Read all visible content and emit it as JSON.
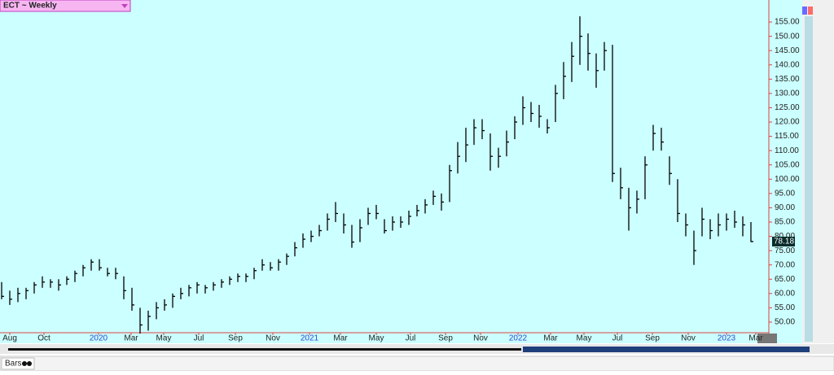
{
  "chart_data": {
    "type": "ohlc",
    "title": "ECT ~ Weekly",
    "high": [
      64,
      61,
      62,
      62,
      64,
      66,
      65,
      65,
      66,
      68,
      70,
      72,
      72,
      69,
      69,
      66,
      62,
      55,
      54,
      57,
      58,
      60,
      62,
      63,
      64,
      63,
      64,
      65,
      66,
      67,
      67,
      69,
      72,
      71,
      72,
      74,
      78,
      81,
      82,
      84,
      88,
      92,
      88,
      84,
      86,
      90,
      91,
      86,
      87,
      87,
      89,
      91,
      93,
      96,
      95,
      105,
      113,
      118,
      121,
      121,
      116,
      111,
      117,
      122,
      129,
      127,
      126,
      121,
      133,
      141,
      148,
      157,
      151,
      144,
      148,
      147,
      104,
      97,
      96,
      108,
      119,
      118,
      108,
      100,
      88,
      82,
      90,
      86,
      88,
      88,
      89,
      87,
      85
    ],
    "low": [
      58,
      56,
      57,
      58,
      60,
      62,
      62,
      61,
      63,
      64,
      66,
      68,
      68,
      66,
      65,
      58,
      54,
      46,
      47,
      51,
      54,
      55,
      58,
      59,
      60,
      60,
      61,
      62,
      63,
      64,
      64,
      65,
      68,
      68,
      68,
      70,
      73,
      76,
      78,
      80,
      82,
      85,
      81,
      76,
      78,
      84,
      86,
      81,
      82,
      83,
      84,
      87,
      88,
      91,
      89,
      92,
      102,
      106,
      112,
      114,
      103,
      104,
      108,
      114,
      119,
      120,
      118,
      116,
      120,
      128,
      134,
      140,
      138,
      132,
      138,
      99,
      93,
      82,
      88,
      93,
      110,
      110,
      98,
      85,
      80,
      70,
      80,
      79,
      80,
      82,
      83,
      80,
      78
    ],
    "close": [
      59,
      58,
      60,
      61,
      63,
      64,
      64,
      63,
      65,
      67,
      69,
      71,
      69,
      67,
      67,
      61,
      56,
      49,
      52,
      55,
      56,
      59,
      60,
      62,
      63,
      62,
      63,
      64,
      65,
      66,
      66,
      68,
      70,
      69,
      71,
      73,
      76,
      79,
      80,
      82,
      86,
      88,
      84,
      78,
      83,
      88,
      88,
      82,
      85,
      85,
      87,
      89,
      91,
      94,
      92,
      103,
      108,
      112,
      118,
      117,
      108,
      108,
      113,
      120,
      125,
      123,
      122,
      118,
      130,
      136,
      143,
      150,
      144,
      138,
      145,
      102,
      97,
      90,
      93,
      105,
      116,
      113,
      102,
      88,
      84,
      75,
      86,
      82,
      84,
      86,
      85,
      84,
      78.18
    ],
    "xlim": [
      -0.2,
      94
    ],
    "xticks": [
      {
        "value": 1,
        "label": "Aug"
      },
      {
        "value": 5.2,
        "label": "Oct"
      },
      {
        "value": 11.9,
        "label": "2020"
      },
      {
        "value": 15.9,
        "label": "Mar"
      },
      {
        "value": 19.9,
        "label": "May"
      },
      {
        "value": 24.2,
        "label": "Jul"
      },
      {
        "value": 28.7,
        "label": "Sep"
      },
      {
        "value": 33.3,
        "label": "Nov"
      },
      {
        "value": 37.8,
        "label": "2021"
      },
      {
        "value": 41.6,
        "label": "Mar"
      },
      {
        "value": 46,
        "label": "May"
      },
      {
        "value": 50.2,
        "label": "Jul"
      },
      {
        "value": 54.5,
        "label": "Sep"
      },
      {
        "value": 58.8,
        "label": "Nov"
      },
      {
        "value": 63.4,
        "label": "2022"
      },
      {
        "value": 67.4,
        "label": "Mar"
      },
      {
        "value": 71.5,
        "label": "May"
      },
      {
        "value": 75.6,
        "label": "Jul"
      },
      {
        "value": 79.9,
        "label": "Sep"
      },
      {
        "value": 84.3,
        "label": "Nov"
      },
      {
        "value": 89,
        "label": "2023"
      },
      {
        "value": 92.6,
        "label": "Mar"
      }
    ],
    "ylim": [
      46,
      162.7
    ],
    "yticks": [
      {
        "value": 50,
        "label": "50.00"
      },
      {
        "value": 55,
        "label": "55.00"
      },
      {
        "value": 60,
        "label": "60.00"
      },
      {
        "value": 65,
        "label": "65.00"
      },
      {
        "value": 70,
        "label": "70.00"
      },
      {
        "value": 75,
        "label": "75.00"
      },
      {
        "value": 80,
        "label": "80.00"
      },
      {
        "value": 85,
        "label": "85.00"
      },
      {
        "value": 90,
        "label": "90.00"
      },
      {
        "value": 95,
        "label": "95.00"
      },
      {
        "value": 100,
        "label": "100.00"
      },
      {
        "value": 105,
        "label": "105.00"
      },
      {
        "value": 110,
        "label": "110.00"
      },
      {
        "value": 115,
        "label": "115.00"
      },
      {
        "value": 120,
        "label": "120.00"
      },
      {
        "value": 125,
        "label": "125.00"
      },
      {
        "value": 130,
        "label": "130.00"
      },
      {
        "value": 135,
        "label": "135.00"
      },
      {
        "value": 140,
        "label": "140.00"
      },
      {
        "value": 145,
        "label": "145.00"
      },
      {
        "value": 150,
        "label": "150.00"
      },
      {
        "value": 155,
        "label": "155.00"
      }
    ],
    "color": "#000000"
  },
  "footer": {
    "label": "Bars"
  }
}
